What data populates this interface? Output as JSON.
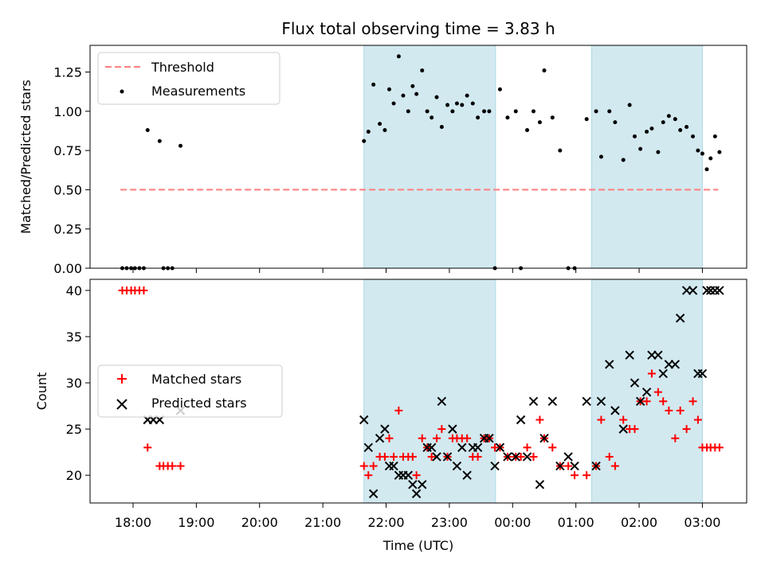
{
  "chart_data": {
    "title": "Flux total observing time = 3.83 h",
    "xlabel": "Time (UTC)",
    "xticks": [
      "18:00",
      "19:00",
      "20:00",
      "21:00",
      "22:00",
      "23:00",
      "00:00",
      "01:00",
      "02:00",
      "03:00"
    ],
    "xtick_hours": [
      18,
      19,
      20,
      21,
      22,
      23,
      24,
      25,
      26,
      27
    ],
    "xlim_hours": [
      17.32,
      27.7
    ],
    "shaded_spans_hours": [
      [
        21.65,
        23.73
      ],
      [
        25.25,
        27.0
      ]
    ],
    "shade_color": "#d2e9f0",
    "panels": [
      {
        "type": "scatter",
        "ylabel": "Matched/Predicted stars",
        "ylim": [
          0,
          1.42
        ],
        "yticks": [
          "0.00",
          "0.25",
          "0.50",
          "0.75",
          "1.00",
          "1.25"
        ],
        "ytick_values": [
          0,
          0.25,
          0.5,
          0.75,
          1.0,
          1.25
        ],
        "legend_position": "upper-left",
        "threshold": {
          "name": "Threshold",
          "value": 0.5,
          "x_range_hours": [
            17.8,
            27.25
          ],
          "color": "#ff7f7f"
        },
        "series": [
          {
            "name": "Measurements",
            "color": "#000000",
            "x": [
              17.83,
              17.9,
              17.97,
              18.03,
              18.1,
              18.17,
              18.23,
              18.42,
              18.48,
              18.55,
              18.62,
              18.75,
              21.65,
              21.72,
              21.8,
              21.9,
              21.98,
              22.05,
              22.12,
              22.2,
              22.27,
              22.35,
              22.42,
              22.48,
              22.57,
              22.65,
              22.72,
              22.8,
              22.88,
              22.97,
              23.05,
              23.12,
              23.2,
              23.28,
              23.37,
              23.45,
              23.55,
              23.63,
              23.72,
              23.8,
              23.92,
              24.05,
              24.13,
              24.23,
              24.33,
              24.43,
              24.5,
              24.63,
              24.75,
              24.88,
              24.98,
              25.17,
              25.32,
              25.4,
              25.53,
              25.62,
              25.75,
              25.85,
              25.93,
              26.02,
              26.12,
              26.2,
              26.3,
              26.38,
              26.47,
              26.57,
              26.65,
              26.75,
              26.85,
              26.93,
              27.0,
              27.07,
              27.13,
              27.2,
              27.27
            ],
            "y": [
              0,
              0,
              0,
              0,
              0,
              0,
              0.88,
              0.81,
              0,
              0,
              0,
              0.78,
              0.81,
              0.87,
              1.17,
              0.92,
              0.88,
              1.14,
              1.05,
              1.35,
              1.1,
              1.0,
              1.16,
              1.11,
              1.26,
              1.0,
              0.96,
              1.09,
              0.9,
              1.04,
              1.0,
              1.05,
              1.04,
              1.1,
              1.05,
              0.96,
              1.0,
              1.0,
              0,
              1.14,
              0.96,
              1.0,
              0,
              0.88,
              1.0,
              0.93,
              1.26,
              0.96,
              0.75,
              0,
              0,
              0.95,
              1.0,
              0.71,
              1.0,
              0.93,
              0.69,
              1.04,
              0.84,
              0.76,
              0.87,
              0.89,
              0.74,
              0.93,
              0.97,
              0.95,
              0.88,
              0.9,
              0.84,
              0.75,
              0.73,
              0.63,
              0.7,
              0.84,
              0.74
            ]
          }
        ]
      },
      {
        "type": "scatter",
        "ylabel": "Count",
        "ylim": [
          17,
          41.2
        ],
        "yticks": [
          "20",
          "25",
          "30",
          "35",
          "40"
        ],
        "ytick_values": [
          20,
          25,
          30,
          35,
          40
        ],
        "legend_position": "center-left",
        "series": [
          {
            "name": "Matched stars",
            "marker": "plus",
            "color": "#ff0000",
            "x": [
              17.83,
              17.9,
              17.97,
              18.03,
              18.1,
              18.17,
              18.23,
              18.42,
              18.48,
              18.55,
              18.62,
              18.75,
              21.65,
              21.72,
              21.8,
              21.9,
              21.98,
              22.05,
              22.12,
              22.2,
              22.27,
              22.35,
              22.42,
              22.48,
              22.57,
              22.65,
              22.72,
              22.8,
              22.88,
              22.97,
              23.05,
              23.12,
              23.2,
              23.28,
              23.37,
              23.45,
              23.55,
              23.63,
              23.72,
              23.8,
              23.92,
              24.05,
              24.13,
              24.23,
              24.33,
              24.43,
              24.5,
              24.63,
              24.75,
              24.88,
              24.98,
              25.17,
              25.32,
              25.4,
              25.53,
              25.62,
              25.75,
              25.85,
              25.93,
              26.02,
              26.12,
              26.2,
              26.3,
              26.38,
              26.47,
              26.57,
              26.65,
              26.75,
              26.85,
              26.93,
              27.0,
              27.07,
              27.13,
              27.2,
              27.27
            ],
            "y": [
              40,
              40,
              40,
              40,
              40,
              40,
              23,
              21,
              21,
              21,
              21,
              21,
              21,
              20,
              21,
              22,
              22,
              24,
              22,
              27,
              22,
              22,
              22,
              20,
              24,
              23,
              22,
              24,
              25,
              22,
              24,
              24,
              24,
              24,
              22,
              22,
              24,
              24,
              23,
              23,
              22,
              22,
              22,
              23,
              22,
              26,
              24,
              23,
              21,
              21,
              20,
              20,
              21,
              26,
              22,
              21,
              26,
              25,
              25,
              28,
              28,
              31,
              29,
              28,
              27,
              24,
              27,
              25,
              28,
              26,
              23,
              23,
              23,
              23,
              23
            ]
          },
          {
            "name": "Predicted stars",
            "marker": "cross",
            "color": "#000000",
            "x": [
              18.23,
              18.32,
              18.42,
              18.75,
              21.65,
              21.72,
              21.8,
              21.9,
              21.98,
              22.05,
              22.12,
              22.2,
              22.27,
              22.35,
              22.42,
              22.48,
              22.57,
              22.65,
              22.72,
              22.8,
              22.88,
              22.97,
              23.05,
              23.12,
              23.2,
              23.28,
              23.37,
              23.45,
              23.55,
              23.63,
              23.72,
              23.8,
              23.92,
              24.05,
              24.13,
              24.23,
              24.33,
              24.43,
              24.5,
              24.63,
              24.75,
              24.88,
              24.98,
              25.17,
              25.32,
              25.4,
              25.53,
              25.62,
              25.75,
              25.85,
              25.93,
              26.02,
              26.12,
              26.2,
              26.3,
              26.38,
              26.47,
              26.57,
              26.65,
              26.75,
              26.85,
              26.93,
              27.0,
              27.07,
              27.13,
              27.2,
              27.27
            ],
            "y": [
              26,
              26,
              26,
              27,
              26,
              23,
              18,
              24,
              25,
              21,
              21,
              20,
              20,
              20,
              19,
              18,
              19,
              23,
              23,
              22,
              28,
              22,
              25,
              21,
              23,
              20,
              23,
              23,
              24,
              24,
              21,
              23,
              22,
              22,
              26,
              22,
              28,
              19,
              24,
              28,
              21,
              22,
              21,
              28,
              21,
              28,
              32,
              27,
              25,
              33,
              30,
              28,
              29,
              33,
              33,
              31,
              32,
              32,
              37,
              40,
              40,
              31,
              31,
              40,
              40,
              40,
              40
            ]
          }
        ]
      }
    ]
  }
}
